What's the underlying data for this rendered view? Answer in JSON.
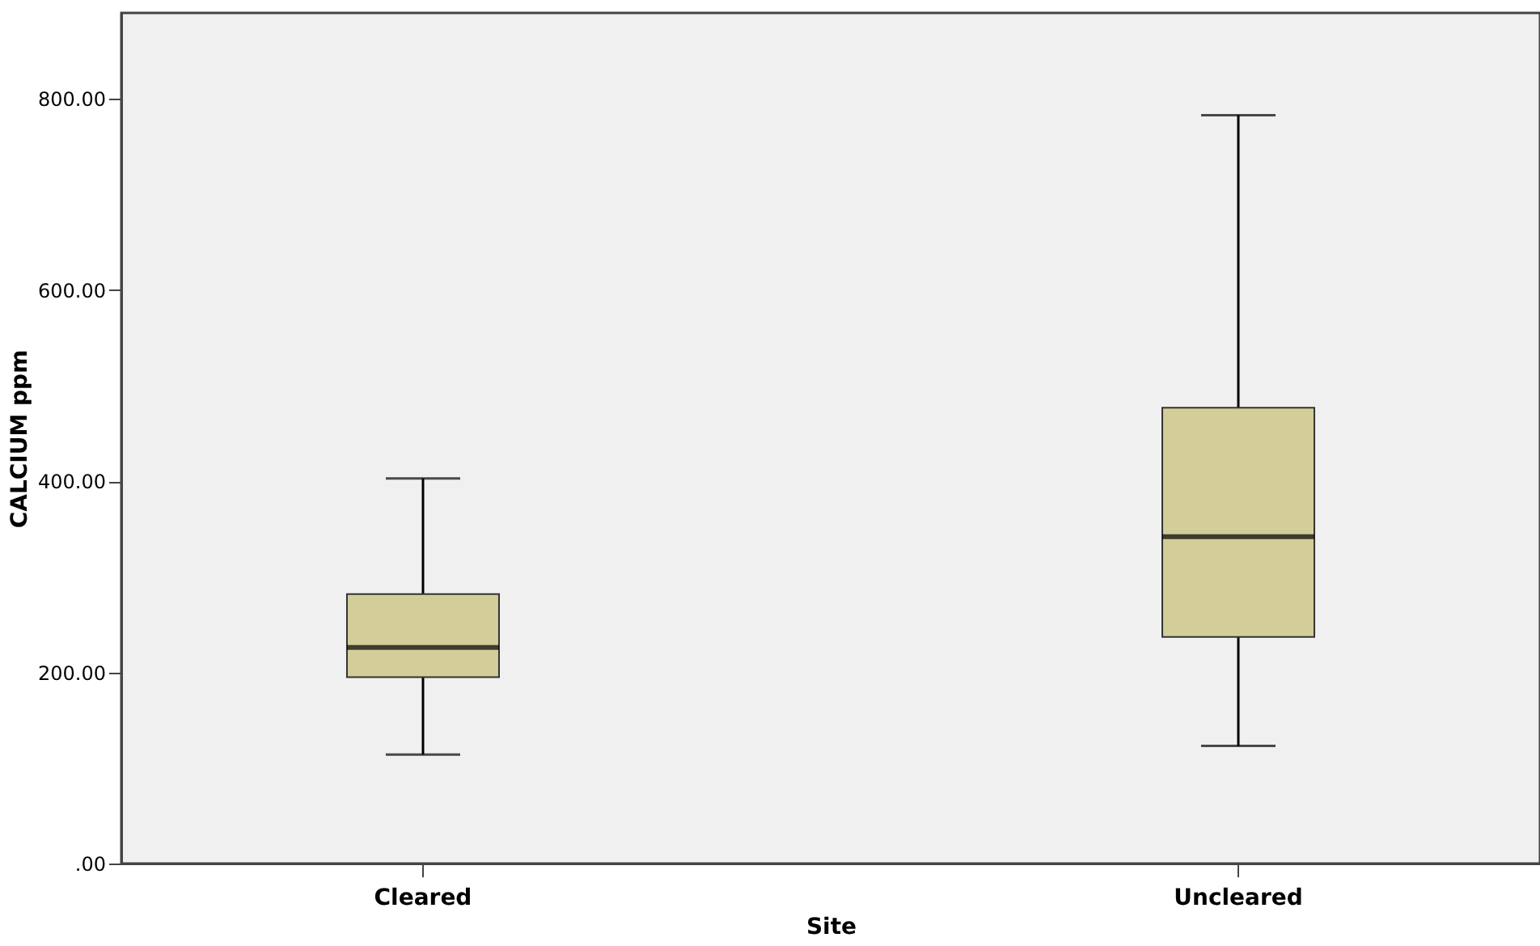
{
  "chart_data": {
    "type": "box",
    "xlabel": "Site",
    "ylabel": "CALCIUM  ppm",
    "categories": [
      "Cleared",
      "Uncleared"
    ],
    "boxes": [
      {
        "low": 114,
        "q1": 195,
        "median": 226,
        "q3": 282,
        "high": 403
      },
      {
        "low": 123,
        "q1": 237,
        "median": 342,
        "q3": 477,
        "high": 783
      }
    ],
    "color": "#d3ce99",
    "ylim": [
      0,
      890
    ],
    "yticks": [
      {
        "value": 0,
        "label": ".00"
      },
      {
        "value": 200,
        "label": "200.00"
      },
      {
        "value": 400,
        "label": "400.00"
      },
      {
        "value": 600,
        "label": "600.00"
      },
      {
        "value": 800,
        "label": "800.00"
      }
    ],
    "grid": false
  }
}
